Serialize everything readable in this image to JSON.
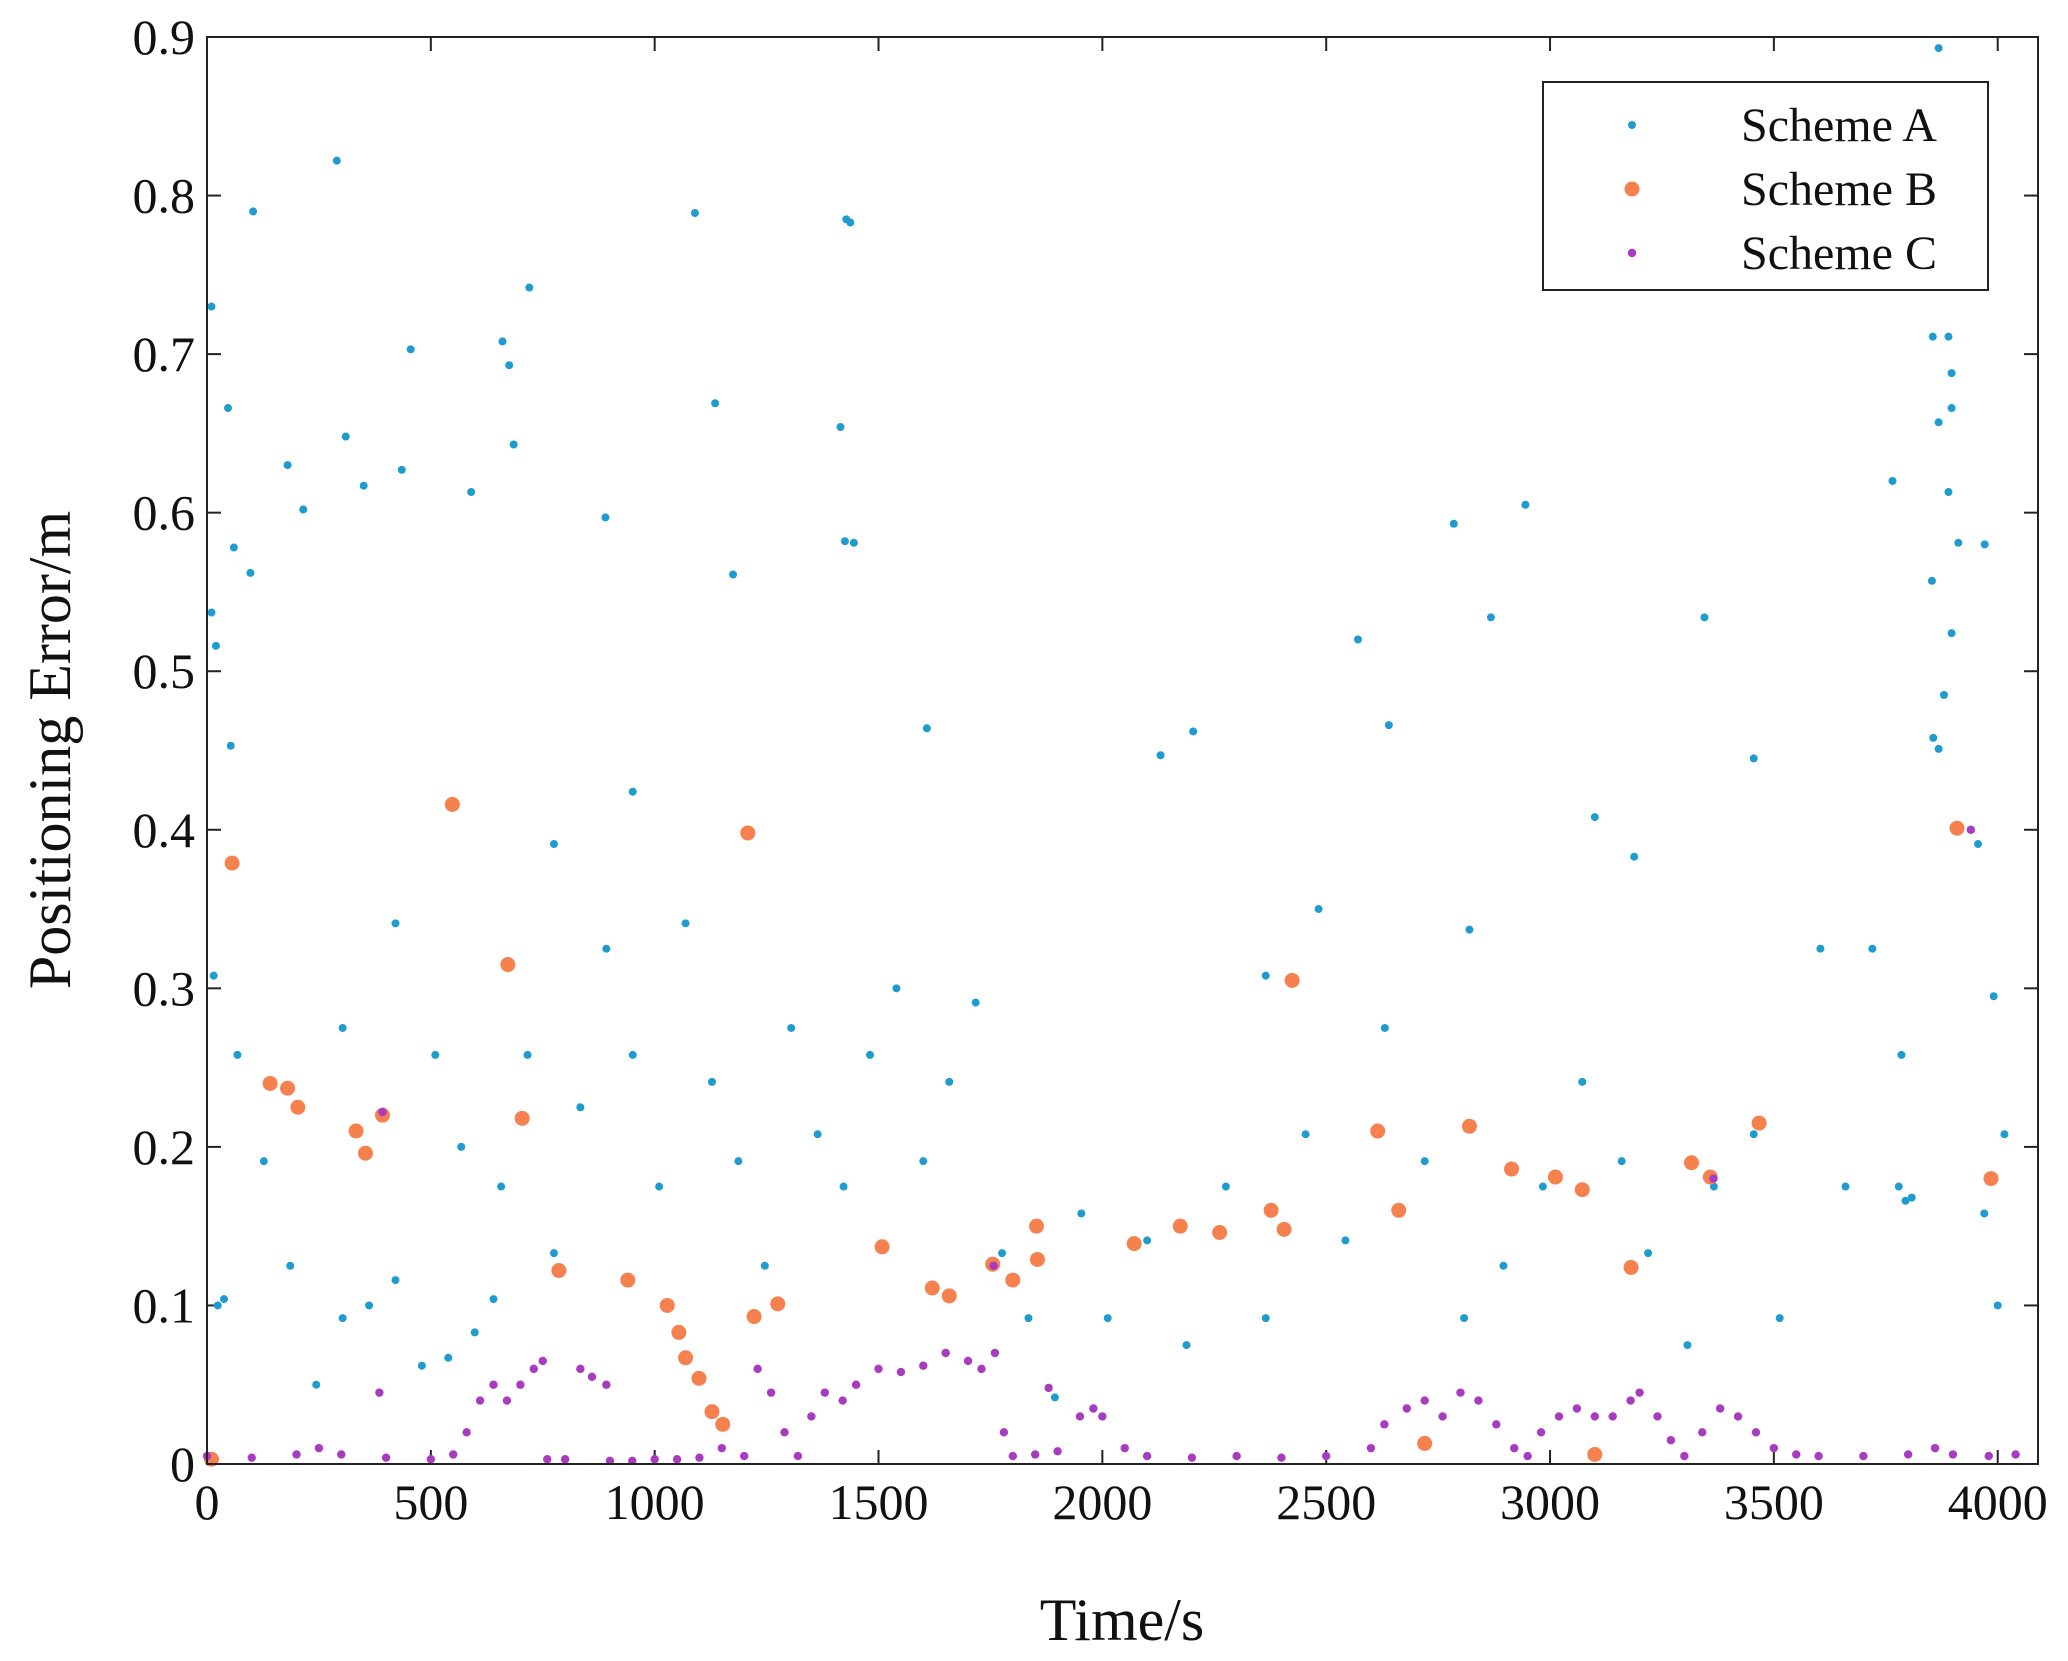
{
  "chart_data": {
    "type": "scatter",
    "xlabel": "Time/s",
    "ylabel": "Positioning Error/m",
    "xlim": [
      0,
      4090
    ],
    "ylim": [
      0,
      0.9
    ],
    "xticks": [
      0,
      500,
      1000,
      1500,
      2000,
      2500,
      3000,
      3500,
      4000
    ],
    "yticks": [
      0,
      0.1,
      0.2,
      0.3,
      0.4,
      0.5,
      0.6,
      0.7,
      0.8,
      0.9
    ],
    "legend": "upper right",
    "grid": false,
    "series": [
      {
        "name": "Scheme A",
        "color": "#1f9ccf",
        "x": [
          10,
          10,
          20,
          47,
          53,
          60,
          97,
          103,
          180,
          215,
          290,
          310,
          350,
          435,
          455,
          590,
          660,
          675,
          685,
          720,
          890,
          1090,
          1135,
          1175,
          1415,
          1428,
          1437,
          1425,
          1445,
          1608,
          2785,
          2868,
          2945,
          3345,
          3765,
          3868,
          3855,
          3890,
          3897,
          3897,
          3868,
          3890,
          3912,
          3971,
          3853,
          3897,
          3856,
          3868,
          3880,
          2571,
          2640,
          2130,
          2203,
          2820,
          2365,
          2483,
          3100,
          3188,
          3455,
          3604,
          3720,
          3956,
          3991,
          4015,
          4000,
          3970,
          3785,
          3779,
          3794,
          3808,
          3660,
          3513,
          3455,
          3366,
          3307,
          3219,
          3160,
          3072,
          2984,
          2896,
          2808,
          2720,
          2631,
          2543,
          2454,
          2365,
          2276,
          2188,
          2100,
          2012,
          1953,
          1894,
          1835,
          1776,
          1717,
          1658,
          1600,
          1540,
          1481,
          1422,
          1364,
          1305,
          1246,
          1187,
          1128,
          1069,
          1010,
          951,
          892,
          834,
          775,
          716,
          657,
          640,
          598,
          539,
          480,
          421,
          362,
          303,
          244,
          186,
          127,
          68,
          38,
          24,
          15,
          303,
          421,
          510,
          568,
          775,
          951
        ],
        "values": [
          0.73,
          0.537,
          0.516,
          0.666,
          0.453,
          0.578,
          0.562,
          0.79,
          0.63,
          0.602,
          0.822,
          0.648,
          0.617,
          0.627,
          0.703,
          0.613,
          0.708,
          0.693,
          0.643,
          0.742,
          0.597,
          0.789,
          0.669,
          0.561,
          0.654,
          0.785,
          0.783,
          0.582,
          0.581,
          0.464,
          0.593,
          0.534,
          0.605,
          0.534,
          0.62,
          0.893,
          0.711,
          0.711,
          0.688,
          0.666,
          0.657,
          0.613,
          0.581,
          0.58,
          0.557,
          0.524,
          0.458,
          0.451,
          0.485,
          0.52,
          0.466,
          0.447,
          0.462,
          0.337,
          0.308,
          0.35,
          0.408,
          0.383,
          0.445,
          0.325,
          0.325,
          0.391,
          0.295,
          0.208,
          0.1,
          0.158,
          0.258,
          0.175,
          0.166,
          0.168,
          0.175,
          0.092,
          0.208,
          0.175,
          0.075,
          0.133,
          0.191,
          0.241,
          0.175,
          0.125,
          0.092,
          0.191,
          0.275,
          0.141,
          0.208,
          0.092,
          0.175,
          0.075,
          0.141,
          0.092,
          0.158,
          0.042,
          0.092,
          0.133,
          0.291,
          0.241,
          0.191,
          0.3,
          0.258,
          0.175,
          0.208,
          0.275,
          0.125,
          0.191,
          0.241,
          0.341,
          0.175,
          0.258,
          0.325,
          0.225,
          0.133,
          0.258,
          0.175,
          0.104,
          0.083,
          0.067,
          0.062,
          0.116,
          0.1,
          0.092,
          0.05,
          0.125,
          0.191,
          0.258,
          0.104,
          0.1,
          0.308,
          0.275,
          0.341,
          0.258,
          0.2,
          0.391,
          0.424
        ]
      },
      {
        "name": "Scheme B",
        "color": "#f5814f",
        "x": [
          56,
          548,
          1208,
          672,
          2424,
          141,
          180,
          203,
          333,
          354,
          392,
          704,
          786,
          940,
          1028,
          1054,
          1069,
          1099,
          1128,
          1152,
          1222,
          1275,
          1508,
          1620,
          1658,
          1755,
          1800,
          1853,
          1855,
          2071,
          2174,
          2262,
          2377,
          2406,
          2615,
          2662,
          2820,
          2914,
          3012,
          3072,
          3181,
          3316,
          3358,
          3467,
          3909,
          3985,
          10,
          2720,
          3100
        ],
        "values": [
          0.379,
          0.416,
          0.398,
          0.315,
          0.305,
          0.24,
          0.237,
          0.225,
          0.21,
          0.196,
          0.22,
          0.218,
          0.122,
          0.116,
          0.1,
          0.083,
          0.067,
          0.054,
          0.033,
          0.025,
          0.093,
          0.101,
          0.137,
          0.111,
          0.106,
          0.126,
          0.116,
          0.15,
          0.129,
          0.139,
          0.15,
          0.146,
          0.16,
          0.148,
          0.21,
          0.16,
          0.213,
          0.186,
          0.181,
          0.173,
          0.124,
          0.19,
          0.181,
          0.215,
          0.401,
          0.18,
          0.003,
          0.013,
          0.006
        ]
      },
      {
        "name": "Scheme C",
        "color": "#a83bbf",
        "x": [
          0,
          100,
          200,
          250,
          300,
          400,
          500,
          550,
          580,
          610,
          640,
          670,
          700,
          730,
          750,
          760,
          800,
          834,
          860,
          892,
          900,
          950,
          1000,
          1050,
          1100,
          1150,
          1200,
          1230,
          1260,
          1290,
          1320,
          1350,
          1380,
          1420,
          1450,
          1500,
          1550,
          1600,
          1650,
          1700,
          1730,
          1760,
          1780,
          1800,
          1850,
          1900,
          1950,
          1980,
          2000,
          2050,
          2100,
          2200,
          2300,
          2400,
          2500,
          2600,
          2630,
          2680,
          2720,
          2760,
          2800,
          2840,
          2880,
          2920,
          2950,
          2980,
          3020,
          3060,
          3100,
          3140,
          3180,
          3200,
          3240,
          3270,
          3300,
          3340,
          3380,
          3420,
          3460,
          3500,
          3550,
          3600,
          3700,
          3800,
          3860,
          3900,
          3940,
          3980,
          4040,
          385,
          392,
          1757,
          1880,
          3365
        ],
        "values": [
          0.005,
          0.004,
          0.006,
          0.01,
          0.006,
          0.004,
          0.003,
          0.006,
          0.02,
          0.04,
          0.05,
          0.04,
          0.05,
          0.06,
          0.065,
          0.003,
          0.003,
          0.06,
          0.055,
          0.05,
          0.002,
          0.002,
          0.003,
          0.003,
          0.004,
          0.01,
          0.005,
          0.06,
          0.045,
          0.02,
          0.005,
          0.03,
          0.045,
          0.04,
          0.05,
          0.06,
          0.058,
          0.062,
          0.07,
          0.065,
          0.06,
          0.07,
          0.02,
          0.005,
          0.006,
          0.008,
          0.03,
          0.035,
          0.03,
          0.01,
          0.005,
          0.004,
          0.005,
          0.004,
          0.005,
          0.01,
          0.025,
          0.035,
          0.04,
          0.03,
          0.045,
          0.04,
          0.025,
          0.01,
          0.005,
          0.02,
          0.03,
          0.035,
          0.03,
          0.03,
          0.04,
          0.045,
          0.03,
          0.015,
          0.005,
          0.02,
          0.035,
          0.03,
          0.02,
          0.01,
          0.006,
          0.005,
          0.005,
          0.006,
          0.01,
          0.006,
          0.4,
          0.005,
          0.006,
          0.045,
          0.222,
          0.125,
          0.048,
          0.18
        ]
      }
    ]
  }
}
